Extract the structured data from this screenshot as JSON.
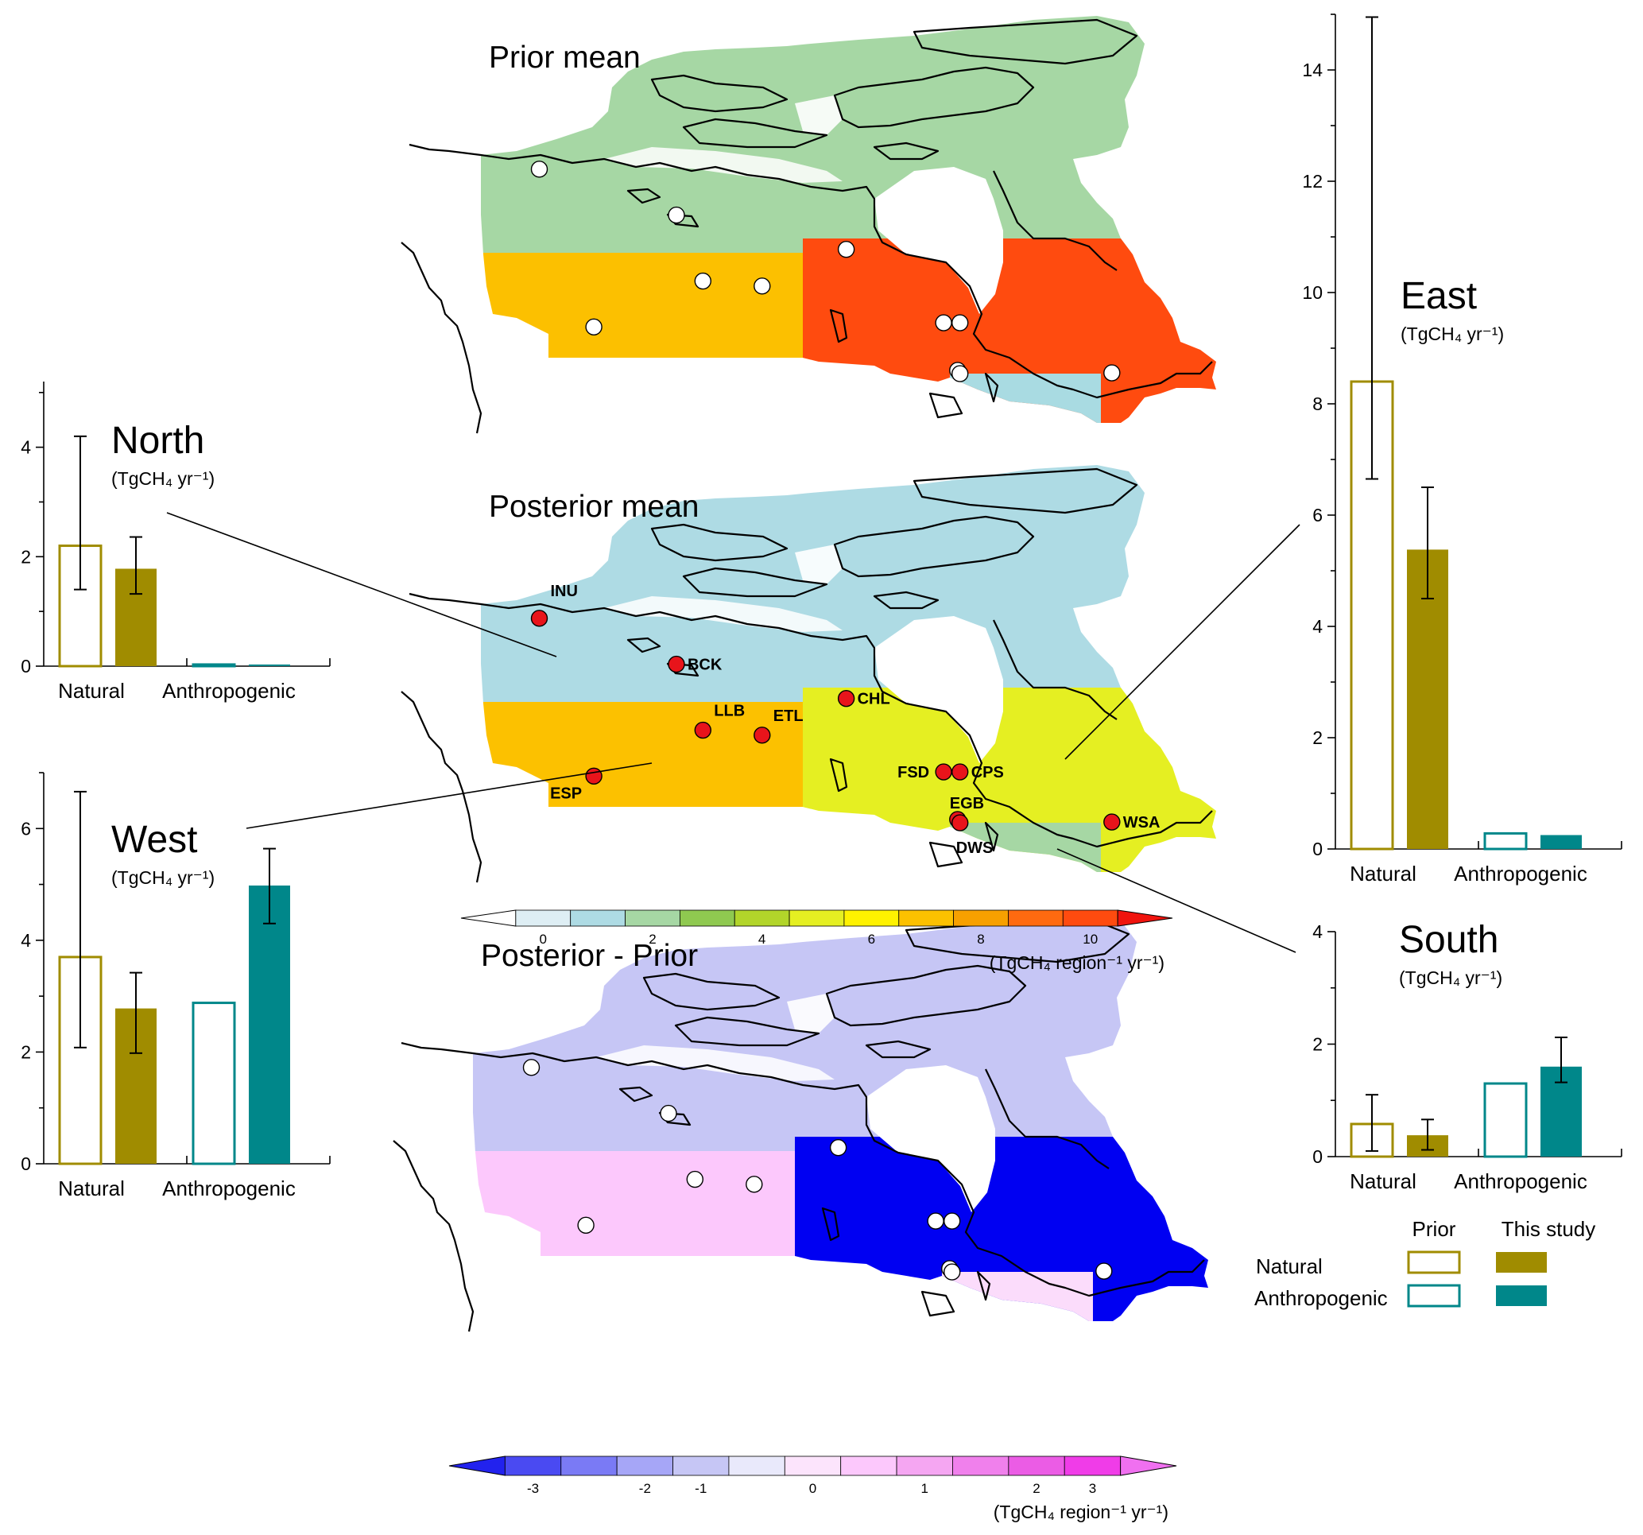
{
  "maps": [
    {
      "id": "prior",
      "title": "Prior mean",
      "region_colors": {
        "North": "#a6d7a4",
        "West": "#fcc000",
        "East": "#ff4b0f",
        "South": "#a9dbe2"
      },
      "marker": "white"
    },
    {
      "id": "posterior",
      "title": "Posterior mean",
      "region_colors": {
        "North": "#aedbe4",
        "West": "#fcc100",
        "East": "#e5ef22",
        "South": "#a6d7a4"
      },
      "marker": "red"
    },
    {
      "id": "diff",
      "title": "Posterior - Prior",
      "region_colors": {
        "North": "#c6c6f5",
        "West": "#fcc8fc",
        "East": "#0000f2",
        "South": "#fbdcfb"
      },
      "marker": "white"
    }
  ],
  "stations": [
    {
      "code": "INU",
      "lon": -133.5,
      "lat": 68.3
    },
    {
      "code": "BCK",
      "lon": -115.9,
      "lat": 62.8
    },
    {
      "code": "CHL",
      "lon": -94.1,
      "lat": 58.7
    },
    {
      "code": "LLB",
      "lon": -112.5,
      "lat": 54.9
    },
    {
      "code": "ETL",
      "lon": -104.9,
      "lat": 54.3
    },
    {
      "code": "ESP",
      "lon": -126.5,
      "lat": 49.4
    },
    {
      "code": "FSD",
      "lon": -81.6,
      "lat": 49.9
    },
    {
      "code": "CPS",
      "lon": -79.5,
      "lat": 49.9
    },
    {
      "code": "EGB",
      "lon": -79.8,
      "lat": 44.2
    },
    {
      "code": "DWS",
      "lon": -79.5,
      "lat": 43.8
    },
    {
      "code": "WSA",
      "lon": -60.0,
      "lat": 43.9
    }
  ],
  "colorbar_top": {
    "colors": [
      "#ffffff",
      "#deeef4",
      "#aedbe4",
      "#a6d7a4",
      "#8fc950",
      "#b2d52a",
      "#e5ef22",
      "#fff200",
      "#fcc100",
      "#f7a000",
      "#ff6a10",
      "#ff4b0f",
      "#f0140e"
    ],
    "tick_labels": [
      "0",
      "2",
      "4",
      "6",
      "8",
      "10"
    ],
    "unit": "(TgCH₄ region⁻¹ yr⁻¹)"
  },
  "colorbar_bottom": {
    "colors": [
      "#2222ee",
      "#4a4af2",
      "#7a7af5",
      "#a6a6f7",
      "#c6c6f5",
      "#e9e9fb",
      "#fce4fc",
      "#fcc8fc",
      "#f5a6f2",
      "#f080ec",
      "#eb5ce5",
      "#f03ce8",
      "#f070f0"
    ],
    "tick_labels": [
      "-3",
      "-2",
      "-1",
      "0",
      "1",
      "2",
      "3"
    ],
    "unit": "(TgCH₄ region⁻¹ yr⁻¹)"
  },
  "region_labels": {
    "North": {
      "name": "North",
      "unit": "(TgCH₄ yr⁻¹)"
    },
    "West": {
      "name": "West",
      "unit": "(TgCH₄ yr⁻¹)"
    },
    "East": {
      "name": "East",
      "unit": "(TgCH₄ yr⁻¹)"
    },
    "South": {
      "name": "South",
      "unit": "(TgCH₄ yr⁻¹)"
    }
  },
  "chart_data": [
    {
      "type": "bar",
      "region": "North",
      "categories": [
        "Natural",
        "Anthropogenic"
      ],
      "series": [
        {
          "name": "Prior",
          "values": [
            2.2,
            0.03
          ],
          "err_low": [
            1.4,
            0.03
          ],
          "err_high": [
            4.2,
            0.03
          ]
        },
        {
          "name": "This study",
          "values": [
            1.78,
            0.03
          ],
          "err_low": [
            1.32,
            0.03
          ],
          "err_high": [
            2.36,
            0.03
          ]
        }
      ],
      "ylim": [
        0,
        5.2
      ],
      "yticks": [
        0,
        2,
        4
      ]
    },
    {
      "type": "bar",
      "region": "West",
      "categories": [
        "Natural",
        "Anthropogenic"
      ],
      "series": [
        {
          "name": "Prior",
          "values": [
            3.7,
            2.88
          ],
          "err_low": [
            2.08,
            2.88
          ],
          "err_high": [
            6.66,
            2.88
          ]
        },
        {
          "name": "This study",
          "values": [
            2.78,
            4.98
          ],
          "err_low": [
            1.98,
            4.3
          ],
          "err_high": [
            3.42,
            5.64
          ]
        }
      ],
      "ylim": [
        0,
        7
      ],
      "yticks": [
        0,
        2,
        4,
        6
      ]
    },
    {
      "type": "bar",
      "region": "East",
      "categories": [
        "Natural",
        "Anthropogenic"
      ],
      "series": [
        {
          "name": "Prior",
          "values": [
            8.4,
            0.28
          ],
          "err_low": [
            6.65,
            0.28
          ],
          "err_high": [
            14.95,
            0.28
          ]
        },
        {
          "name": "This study",
          "values": [
            5.38,
            0.25
          ],
          "err_low": [
            4.5,
            0.25
          ],
          "err_high": [
            6.5,
            0.25
          ]
        }
      ],
      "ylim": [
        0,
        15
      ],
      "yticks": [
        0,
        2,
        4,
        6,
        8,
        10,
        12,
        14
      ]
    },
    {
      "type": "bar",
      "region": "South",
      "categories": [
        "Natural",
        "Anthropogenic"
      ],
      "series": [
        {
          "name": "Prior",
          "values": [
            0.58,
            1.3
          ],
          "err_low": [
            0.1,
            1.3
          ],
          "err_high": [
            1.1,
            1.3
          ]
        },
        {
          "name": "This study",
          "values": [
            0.38,
            1.6
          ],
          "err_low": [
            0.12,
            1.32
          ],
          "err_high": [
            0.66,
            2.12
          ]
        }
      ],
      "ylim": [
        0,
        4
      ],
      "yticks": [
        0,
        2,
        4
      ]
    }
  ],
  "legend": {
    "col_prior": "Prior",
    "col_this_study": "This study",
    "row_natural": "Natural",
    "row_anthropogenic": "Anthropogenic",
    "natural_color": "#a08c00",
    "anthropogenic_color": "#00878a"
  }
}
